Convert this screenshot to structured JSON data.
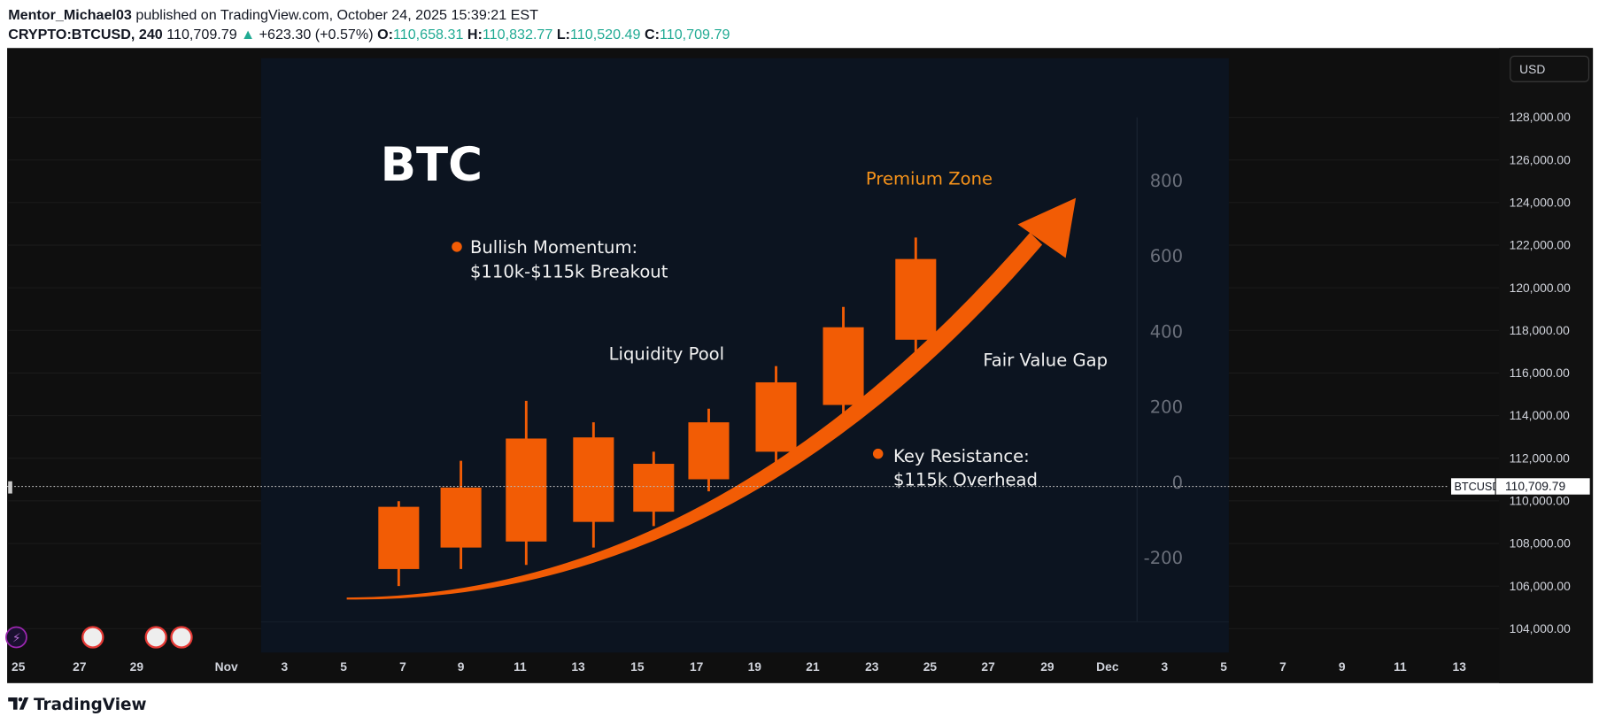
{
  "header": {
    "author": "Mentor_Michael03",
    "published": "published on TradingView.com, October 24, 2025 15:39:21 EST",
    "symbol": "CRYPTO:BTCUSD, 240",
    "last": "110,709.79",
    "change": "+623.30 (+0.57%)",
    "o_label": "O:",
    "o": "110,658.31",
    "h_label": "H:",
    "h": "110,832.77",
    "l_label": "L:",
    "l": "110,520.49",
    "c_label": "C:",
    "c": "110,709.79"
  },
  "currency_button": "USD",
  "price_axis": [
    "128,000.00",
    "126,000.00",
    "124,000.00",
    "122,000.00",
    "120,000.00",
    "118,000.00",
    "116,000.00",
    "114,000.00",
    "112,000.00",
    "110,000.00",
    "108,000.00",
    "106,000.00",
    "104,000.00"
  ],
  "current_price": {
    "symbol": "BTCUSD",
    "value": "110,709.79"
  },
  "time_axis": [
    "25",
    "27",
    "29",
    "Nov",
    "3",
    "5",
    "7",
    "9",
    "11",
    "13",
    "15",
    "17",
    "19",
    "21",
    "23",
    "25",
    "27",
    "29",
    "Dec",
    "3",
    "5",
    "7",
    "9",
    "11",
    "13"
  ],
  "inset": {
    "title": "BTC",
    "premium_zone": "Premium Zone",
    "bullish_1": "Bullish Momentum:",
    "bullish_2": "$110k-$115k Breakout",
    "liquidity_pool": "Liquidity Pool",
    "fair_value_gap": "Fair Value Gap",
    "resistance_1": "Key Resistance:",
    "resistance_2": "$115k Overhead",
    "axis": [
      "800",
      "600",
      "400",
      "200",
      "0",
      "-200"
    ]
  },
  "chart_data": {
    "type": "candlestick",
    "title": "BTC",
    "ylim": [
      -300,
      900
    ],
    "candles": [
      {
        "o": -230,
        "h": -50,
        "l": -275,
        "c": -65
      },
      {
        "o": -173,
        "h": 57,
        "l": -230,
        "c": -14
      },
      {
        "o": -157,
        "h": 216,
        "l": -219,
        "c": 116
      },
      {
        "o": -105,
        "h": 159,
        "l": -173,
        "c": 119
      },
      {
        "o": -78,
        "h": 81,
        "l": -116,
        "c": 49
      },
      {
        "o": 8,
        "h": 195,
        "l": -24,
        "c": 159
      },
      {
        "o": 81,
        "h": 308,
        "l": 38,
        "c": 265
      },
      {
        "o": 205,
        "h": 465,
        "l": 154,
        "c": 411
      },
      {
        "o": 378,
        "h": 649,
        "l": 316,
        "c": 592
      }
    ]
  },
  "colors": {
    "accent": "#f25c05",
    "teal": "#22ab94",
    "bg": "#0f0f0f",
    "inset_bg": "#0c1420"
  },
  "footer": {
    "brand": "TradingView"
  }
}
